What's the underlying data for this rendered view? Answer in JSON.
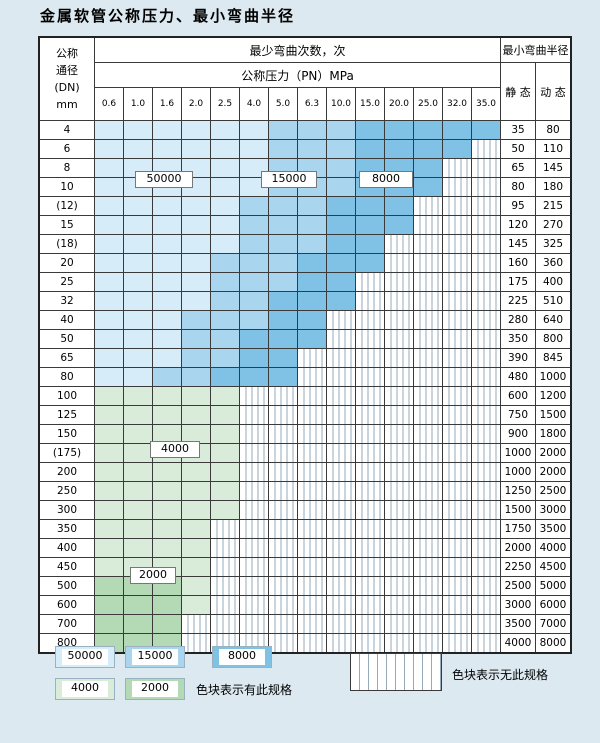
{
  "chart_data": {
    "type": "table",
    "title": "金属软管公称压力、最小弯曲半径",
    "header": {
      "dn_lines": [
        "公称",
        "通径",
        "(DN)",
        "mm"
      ],
      "bend_times_label": "最少弯曲次数，次",
      "pressure_label": "公称压力（PN）MPa",
      "radius_label": "最小弯曲半径",
      "static_label": "静 态",
      "dynamic_label": "动 态"
    },
    "columns": [
      "0.6",
      "1.0",
      "1.6",
      "2.0",
      "2.5",
      "4.0",
      "5.0",
      "6.3",
      "10.0",
      "15.0",
      "20.0",
      "25.0",
      "32.0",
      "35.0"
    ],
    "cell_colors": {
      "b1": "#d6ecf8",
      "b2": "#a9d5ee",
      "b3": "#7fc2e6",
      "g1": "#d9ecd9",
      "g2": "#b3d9b5"
    },
    "cell_legend": {
      "b1": "50000",
      "b2": "15000",
      "b3": "8000",
      "g1": "4000",
      "g2": "2000",
      "x": "无此规格"
    },
    "zone_labels": [
      {
        "label": "50000"
      },
      {
        "label": "15000"
      },
      {
        "label": "8000"
      },
      {
        "label": "4000"
      },
      {
        "label": "2000"
      }
    ],
    "rows": [
      {
        "dn": "4",
        "static": "35",
        "dynamic": "80",
        "cells": [
          "b1",
          "b1",
          "b1",
          "b1",
          "b1",
          "b1",
          "b2",
          "b2",
          "b2",
          "b3",
          "b3",
          "b3",
          "b3",
          "b3"
        ]
      },
      {
        "dn": "6",
        "static": "50",
        "dynamic": "110",
        "cells": [
          "b1",
          "b1",
          "b1",
          "b1",
          "b1",
          "b1",
          "b2",
          "b2",
          "b2",
          "b3",
          "b3",
          "b3",
          "b3",
          "x"
        ]
      },
      {
        "dn": "8",
        "static": "65",
        "dynamic": "145",
        "cells": [
          "b1",
          "b1",
          "b1",
          "b1",
          "b1",
          "b1",
          "b2",
          "b2",
          "b2",
          "b3",
          "b3",
          "b3",
          "x",
          "x"
        ]
      },
      {
        "dn": "10",
        "static": "80",
        "dynamic": "180",
        "cells": [
          "b1",
          "b1",
          "b1",
          "b1",
          "b1",
          "b1",
          "b2",
          "b2",
          "b2",
          "b3",
          "b3",
          "b3",
          "x",
          "x"
        ]
      },
      {
        "dn": "(12)",
        "static": "95",
        "dynamic": "215",
        "cells": [
          "b1",
          "b1",
          "b1",
          "b1",
          "b1",
          "b2",
          "b2",
          "b2",
          "b3",
          "b3",
          "b3",
          "x",
          "x",
          "x"
        ]
      },
      {
        "dn": "15",
        "static": "120",
        "dynamic": "270",
        "cells": [
          "b1",
          "b1",
          "b1",
          "b1",
          "b1",
          "b2",
          "b2",
          "b2",
          "b3",
          "b3",
          "b3",
          "x",
          "x",
          "x"
        ]
      },
      {
        "dn": "(18)",
        "static": "145",
        "dynamic": "325",
        "cells": [
          "b1",
          "b1",
          "b1",
          "b1",
          "b1",
          "b2",
          "b2",
          "b2",
          "b3",
          "b3",
          "x",
          "x",
          "x",
          "x"
        ]
      },
      {
        "dn": "20",
        "static": "160",
        "dynamic": "360",
        "cells": [
          "b1",
          "b1",
          "b1",
          "b1",
          "b2",
          "b2",
          "b2",
          "b3",
          "b3",
          "b3",
          "x",
          "x",
          "x",
          "x"
        ]
      },
      {
        "dn": "25",
        "static": "175",
        "dynamic": "400",
        "cells": [
          "b1",
          "b1",
          "b1",
          "b1",
          "b2",
          "b2",
          "b2",
          "b3",
          "b3",
          "x",
          "x",
          "x",
          "x",
          "x"
        ]
      },
      {
        "dn": "32",
        "static": "225",
        "dynamic": "510",
        "cells": [
          "b1",
          "b1",
          "b1",
          "b1",
          "b2",
          "b2",
          "b3",
          "b3",
          "b3",
          "x",
          "x",
          "x",
          "x",
          "x"
        ]
      },
      {
        "dn": "40",
        "static": "280",
        "dynamic": "640",
        "cells": [
          "b1",
          "b1",
          "b1",
          "b2",
          "b2",
          "b2",
          "b3",
          "b3",
          "x",
          "x",
          "x",
          "x",
          "x",
          "x"
        ]
      },
      {
        "dn": "50",
        "static": "350",
        "dynamic": "800",
        "cells": [
          "b1",
          "b1",
          "b1",
          "b2",
          "b2",
          "b3",
          "b3",
          "b3",
          "x",
          "x",
          "x",
          "x",
          "x",
          "x"
        ]
      },
      {
        "dn": "65",
        "static": "390",
        "dynamic": "845",
        "cells": [
          "b1",
          "b1",
          "b1",
          "b2",
          "b2",
          "b3",
          "b3",
          "x",
          "x",
          "x",
          "x",
          "x",
          "x",
          "x"
        ]
      },
      {
        "dn": "80",
        "static": "480",
        "dynamic": "1000",
        "cells": [
          "b1",
          "b1",
          "b2",
          "b2",
          "b3",
          "b3",
          "b3",
          "x",
          "x",
          "x",
          "x",
          "x",
          "x",
          "x"
        ]
      },
      {
        "dn": "100",
        "static": "600",
        "dynamic": "1200",
        "cells": [
          "g1",
          "g1",
          "g1",
          "g1",
          "g1",
          "x",
          "x",
          "x",
          "x",
          "x",
          "x",
          "x",
          "x",
          "x"
        ]
      },
      {
        "dn": "125",
        "static": "750",
        "dynamic": "1500",
        "cells": [
          "g1",
          "g1",
          "g1",
          "g1",
          "g1",
          "x",
          "x",
          "x",
          "x",
          "x",
          "x",
          "x",
          "x",
          "x"
        ]
      },
      {
        "dn": "150",
        "static": "900",
        "dynamic": "1800",
        "cells": [
          "g1",
          "g1",
          "g1",
          "g1",
          "g1",
          "x",
          "x",
          "x",
          "x",
          "x",
          "x",
          "x",
          "x",
          "x"
        ]
      },
      {
        "dn": "(175)",
        "static": "1000",
        "dynamic": "2000",
        "cells": [
          "g1",
          "g1",
          "g1",
          "g1",
          "g1",
          "x",
          "x",
          "x",
          "x",
          "x",
          "x",
          "x",
          "x",
          "x"
        ]
      },
      {
        "dn": "200",
        "static": "1000",
        "dynamic": "2000",
        "cells": [
          "g1",
          "g1",
          "g1",
          "g1",
          "g1",
          "x",
          "x",
          "x",
          "x",
          "x",
          "x",
          "x",
          "x",
          "x"
        ]
      },
      {
        "dn": "250",
        "static": "1250",
        "dynamic": "2500",
        "cells": [
          "g1",
          "g1",
          "g1",
          "g1",
          "g1",
          "x",
          "x",
          "x",
          "x",
          "x",
          "x",
          "x",
          "x",
          "x"
        ]
      },
      {
        "dn": "300",
        "static": "1500",
        "dynamic": "3000",
        "cells": [
          "g1",
          "g1",
          "g1",
          "g1",
          "g1",
          "x",
          "x",
          "x",
          "x",
          "x",
          "x",
          "x",
          "x",
          "x"
        ]
      },
      {
        "dn": "350",
        "static": "1750",
        "dynamic": "3500",
        "cells": [
          "g1",
          "g1",
          "g1",
          "g1",
          "x",
          "x",
          "x",
          "x",
          "x",
          "x",
          "x",
          "x",
          "x",
          "x"
        ]
      },
      {
        "dn": "400",
        "static": "2000",
        "dynamic": "4000",
        "cells": [
          "g1",
          "g1",
          "g1",
          "g1",
          "x",
          "x",
          "x",
          "x",
          "x",
          "x",
          "x",
          "x",
          "x",
          "x"
        ]
      },
      {
        "dn": "450",
        "static": "2250",
        "dynamic": "4500",
        "cells": [
          "g1",
          "g1",
          "g1",
          "g1",
          "x",
          "x",
          "x",
          "x",
          "x",
          "x",
          "x",
          "x",
          "x",
          "x"
        ]
      },
      {
        "dn": "500",
        "static": "2500",
        "dynamic": "5000",
        "cells": [
          "g2",
          "g2",
          "g2",
          "g1",
          "x",
          "x",
          "x",
          "x",
          "x",
          "x",
          "x",
          "x",
          "x",
          "x"
        ]
      },
      {
        "dn": "600",
        "static": "3000",
        "dynamic": "6000",
        "cells": [
          "g2",
          "g2",
          "g2",
          "g1",
          "x",
          "x",
          "x",
          "x",
          "x",
          "x",
          "x",
          "x",
          "x",
          "x"
        ]
      },
      {
        "dn": "700",
        "static": "3500",
        "dynamic": "7000",
        "cells": [
          "g2",
          "g2",
          "g2",
          "x",
          "x",
          "x",
          "x",
          "x",
          "x",
          "x",
          "x",
          "x",
          "x",
          "x"
        ]
      },
      {
        "dn": "800",
        "static": "4000",
        "dynamic": "8000",
        "cells": [
          "g2",
          "g2",
          "g2",
          "x",
          "x",
          "x",
          "x",
          "x",
          "x",
          "x",
          "x",
          "x",
          "x",
          "x"
        ]
      }
    ]
  },
  "legend": {
    "items": [
      {
        "label": "50000",
        "code": "b1"
      },
      {
        "label": "15000",
        "code": "b2"
      },
      {
        "label": "8000",
        "code": "b3"
      },
      {
        "label": "4000",
        "code": "g1"
      },
      {
        "label": "2000",
        "code": "g2"
      }
    ],
    "has_spec_text": "色块表示有此规格",
    "no_spec_text": "色块表示无此规格"
  }
}
